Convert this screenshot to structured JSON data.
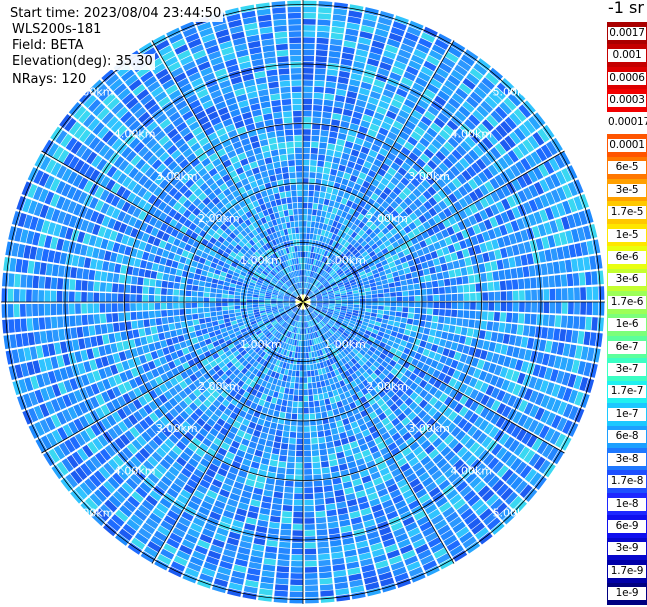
{
  "info": {
    "start_time": "Start time: 2023/08/04 23:44:50",
    "radar": "WLS200s-181",
    "field": "Field: BETA",
    "elevation": "Elevation(deg): 35.30",
    "nrays": "NRays: 120"
  },
  "units": "-1 sr",
  "range_rings": {
    "labels": [
      "1.00km",
      "2.00km",
      "3.00km",
      "4.00km",
      "5.00km"
    ]
  },
  "colorbar": {
    "labels": [
      "0.0017",
      "0.001",
      "0.0006",
      "0.0003",
      "0.00017",
      "0.0001",
      "6e-5",
      "3e-5",
      "1.7e-5",
      "1e-5",
      "6e-6",
      "3e-6",
      "1.7e-6",
      "1e-6",
      "6e-7",
      "3e-7",
      "1.7e-7",
      "1e-7",
      "6e-8",
      "3e-8",
      "1.7e-8",
      "1e-8",
      "6e-9",
      "3e-9",
      "1.7e-9",
      "1e-9"
    ],
    "colors": [
      "#aa0000",
      "#c40000",
      "#dd0000",
      "#f20000",
      "#ffffff",
      "#ff5500",
      "#ff7700",
      "#ffa000",
      "#ffc800",
      "#ffe600",
      "#e9ff10",
      "#c4ff30",
      "#9cff58",
      "#7cff7a",
      "#5cff9c",
      "#3cffc4",
      "#20f0f0",
      "#1cc8ff",
      "#1ca0ff",
      "#1e78ff",
      "#1e50ff",
      "#1e28ff",
      "#1010ee",
      "#0808cc",
      "#0000a8",
      "#000080"
    ]
  },
  "field_colors": [
    "#1f8bff",
    "#27a6ff",
    "#1e6bff",
    "#30c4ff",
    "#2b98ff",
    "#1c5cf2",
    "#3ad8f2",
    "#2486ff"
  ]
}
